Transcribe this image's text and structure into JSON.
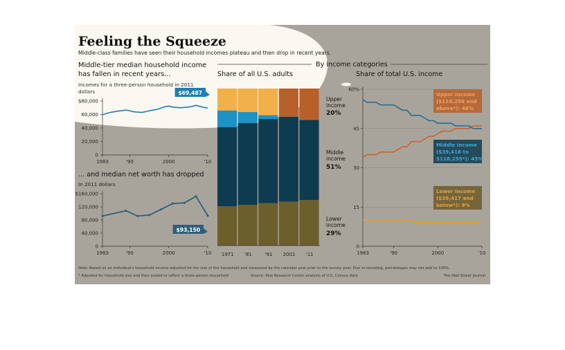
{
  "header": {
    "title": "Feeling the Squeeze",
    "subtitle": "Middle-class families have seen their household incomes plateau and then drop in recent years."
  },
  "colors": {
    "background": "#a9a49b",
    "spotlight": "#fffdf6",
    "upper": "#b7602a",
    "upper_bright": "#f2b04a",
    "middle": "#0e3b4f",
    "middle_bright": "#1b93c4",
    "lower": "#6b5f2c",
    "lower_bright": "#e8a33c",
    "line_blue": "#1e7fb0",
    "line_dark": "#2f5f7a"
  },
  "panel_income": {
    "title_line1": "Middle-tier median household income",
    "title_line2": "has fallen in recent years...",
    "note_line1": "Incomes for a three-person household in 2011",
    "note_line2": "dollars",
    "callout": "$69,487"
  },
  "panel_networth": {
    "title": "... and median net worth has dropped",
    "note": "In 2011 dollars",
    "callout": "$93,150"
  },
  "section_header": "By income categories",
  "panel_share_adults": {
    "title": "Share of all U.S. adults",
    "labels": [
      {
        "l1": "Upper",
        "l2": "income",
        "pct": "20%"
      },
      {
        "l1": "Middle",
        "l2": "income",
        "pct": "51%"
      },
      {
        "l1": "Lower",
        "l2": "income",
        "pct": "29%"
      }
    ]
  },
  "panel_share_income": {
    "title": "Share of total U.S. income",
    "labels": [
      {
        "lines": [
          "Upper income",
          "($118,256 and",
          "above*): 46%"
        ]
      },
      {
        "lines": [
          "Middle income",
          "($39,418 to",
          "$118,255*): 45%"
        ]
      },
      {
        "lines": [
          "Lower income",
          "($39,417 and",
          "below*): 9%"
        ]
      }
    ]
  },
  "footer": {
    "note": "Note: Based on an individual's household income adjusted for the size of the household and measured by the calendar year prior to the survey year. Due to rounding, percentages may not add to 100%.",
    "footnote": "* Adjusted for household size and then scaled to reflect a three-person household",
    "source": "Source: Pew Research Center analysis of U.S. Census data",
    "credit": "The Wall Street Journal"
  },
  "chart_data": [
    {
      "type": "line",
      "id": "income",
      "title": "Middle-tier median household income has fallen in recent years...",
      "ylabel": "Incomes for a three-person household in 2011 dollars",
      "yticks": [
        "0",
        "20,000",
        "40,000",
        "60,000",
        "$80,000"
      ],
      "ytick_values": [
        0,
        20000,
        40000,
        60000,
        80000
      ],
      "xticks": [
        "1983",
        "'90",
        "2000",
        "'10"
      ],
      "xtick_values": [
        1983,
        1990,
        2000,
        2010
      ],
      "ylim": [
        0,
        80000
      ],
      "xlim": [
        1983,
        2010
      ],
      "x": [
        1983,
        1984,
        1985,
        1986,
        1987,
        1988,
        1989,
        1990,
        1991,
        1992,
        1993,
        1994,
        1995,
        1996,
        1997,
        1998,
        1999,
        2000,
        2001,
        2002,
        2003,
        2004,
        2005,
        2006,
        2007,
        2008,
        2009,
        2010
      ],
      "values": [
        59500,
        61500,
        63000,
        64000,
        65000,
        65500,
        66500,
        65500,
        64000,
        63500,
        63000,
        64000,
        65500,
        66500,
        67500,
        69500,
        71500,
        72500,
        71000,
        70500,
        70000,
        70500,
        71000,
        72000,
        73500,
        72000,
        70500,
        69487
      ],
      "callout": "$69,487"
    },
    {
      "type": "line",
      "id": "networth",
      "title": "... and median net worth has dropped",
      "ylabel": "In 2011 dollars",
      "yticks": [
        "0",
        "40,000",
        "80,000",
        "120,000",
        "$160,000"
      ],
      "ytick_values": [
        0,
        40000,
        80000,
        120000,
        160000
      ],
      "xticks": [
        "1983",
        "'90",
        "2000",
        "'10"
      ],
      "xtick_values": [
        1983,
        1990,
        2000,
        2010
      ],
      "ylim": [
        0,
        160000
      ],
      "xlim": [
        1983,
        2010
      ],
      "x": [
        1983,
        1989,
        1992,
        1995,
        1998,
        2001,
        2004,
        2007,
        2010
      ],
      "values": [
        92000,
        108000,
        92000,
        95000,
        112000,
        130000,
        132000,
        152000,
        93150
      ],
      "callout": "$93,150"
    },
    {
      "type": "bar",
      "id": "share_adults",
      "stacked": true,
      "title": "Share of all U.S. adults",
      "categories": [
        "1971",
        "'81",
        "'91",
        "2001",
        "'11"
      ],
      "series": [
        {
          "name": "Lower income",
          "values": [
            25,
            26,
            27,
            28,
            29
          ]
        },
        {
          "name": "Middle income",
          "values": [
            61,
            59,
            56,
            54,
            51
          ]
        },
        {
          "name": "Upper income",
          "values": [
            14,
            15,
            17,
            18,
            20
          ]
        }
      ]
    },
    {
      "type": "line",
      "id": "share_income",
      "title": "Share of total U.S. income",
      "yticks": [
        "0",
        "15",
        "30",
        "45",
        "60%"
      ],
      "ytick_values": [
        0,
        15,
        30,
        45,
        60
      ],
      "xticks": [
        "1983",
        "'90",
        "2000",
        "'10"
      ],
      "xtick_values": [
        1983,
        1990,
        2000,
        2010
      ],
      "ylim": [
        0,
        60
      ],
      "xlim": [
        1983,
        2010
      ],
      "x": [
        1983,
        1984,
        1985,
        1986,
        1987,
        1988,
        1989,
        1990,
        1991,
        1992,
        1993,
        1994,
        1995,
        1996,
        1997,
        1998,
        1999,
        2000,
        2001,
        2002,
        2003,
        2004,
        2005,
        2006,
        2007,
        2008,
        2009,
        2010
      ],
      "series": [
        {
          "name": "Upper income",
          "values": [
            34,
            35,
            35,
            35,
            36,
            36,
            36,
            36,
            37,
            38,
            38,
            40,
            40,
            40,
            41,
            42,
            42,
            43,
            44,
            44,
            44,
            45,
            45,
            45,
            45,
            46,
            46,
            46
          ]
        },
        {
          "name": "Middle income",
          "values": [
            56,
            55,
            55,
            55,
            54,
            54,
            54,
            54,
            53,
            52,
            52,
            50,
            50,
            50,
            49,
            48,
            48,
            47,
            47,
            47,
            47,
            46,
            46,
            46,
            46,
            45,
            45,
            45
          ]
        },
        {
          "name": "Lower income",
          "values": [
            10,
            10,
            10,
            10,
            10,
            10,
            10,
            10,
            10,
            10,
            10,
            10,
            9,
            9,
            9,
            9,
            9,
            9,
            9,
            9,
            9,
            9,
            9,
            9,
            9,
            9,
            9,
            9
          ]
        }
      ]
    }
  ]
}
